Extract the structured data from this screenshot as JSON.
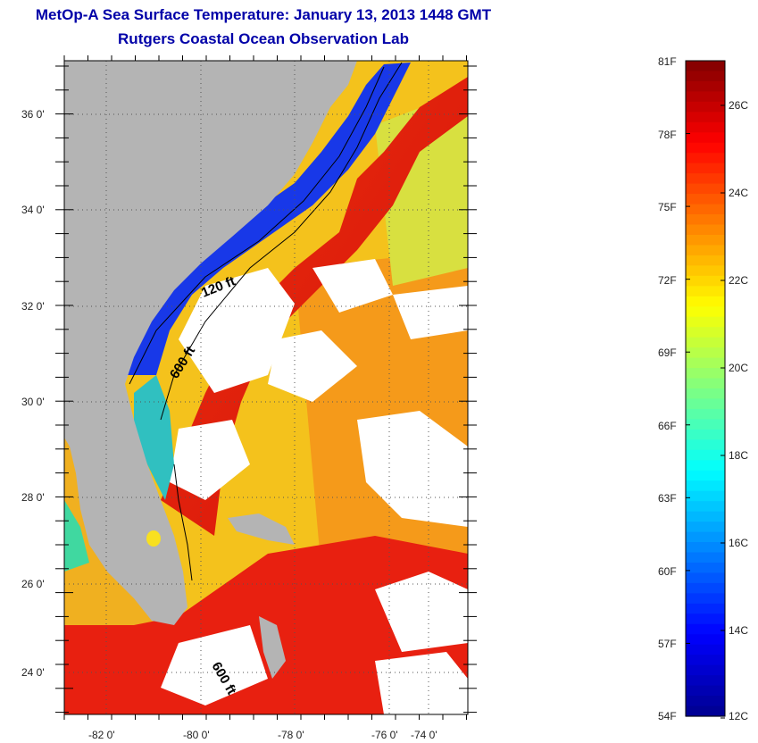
{
  "title": "MetOp-A Sea Surface Temperature:  January 13, 2013 1448 GMT",
  "subtitle": "Rutgers Coastal Ocean Observation Lab",
  "map": {
    "lat_labels": [
      "36 0'",
      "34 0'",
      "32 0'",
      "30 0'",
      "28 0'",
      "26 0'",
      "24 0'"
    ],
    "lon_labels": [
      "-82 0'",
      "-80 0'",
      "-78 0'",
      "-76 0'",
      "-74 0'"
    ],
    "contour_labels": [
      "120 ft",
      "600 ft",
      "600 ft"
    ],
    "colors": {
      "land": "#b4b4b4",
      "cloud": "#ffffff",
      "cold_coastal": "#1030e0",
      "warm_stream": "#e02010",
      "offshore": "#f0c020"
    }
  },
  "colorbar": {
    "fahrenheit_labels": [
      "81F",
      "78F",
      "75F",
      "72F",
      "69F",
      "66F",
      "63F",
      "60F",
      "57F",
      "54F"
    ],
    "celsius_labels": [
      "26C",
      "24C",
      "22C",
      "20C",
      "18C",
      "16C",
      "14C",
      "12C"
    ],
    "range_f": [
      54,
      81
    ],
    "range_c": [
      12,
      27
    ],
    "palette": [
      "#00008f",
      "#0000ff",
      "#0080ff",
      "#00ffff",
      "#80ff80",
      "#ffff00",
      "#ff8000",
      "#ff0000",
      "#800000"
    ]
  }
}
